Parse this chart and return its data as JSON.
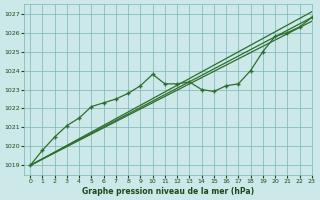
{
  "xlabel": "Graphe pression niveau de la mer (hPa)",
  "bg_color": "#cce8e8",
  "grid_color": "#7ab5b5",
  "line_color": "#2d6e2d",
  "marker_color": "#2d6e2d",
  "text_color": "#1a4a1a",
  "ylim": [
    1018.5,
    1027.5
  ],
  "xlim": [
    -0.5,
    23
  ],
  "yticks": [
    1019,
    1020,
    1021,
    1022,
    1023,
    1024,
    1025,
    1026,
    1027
  ],
  "xticks": [
    0,
    1,
    2,
    3,
    4,
    5,
    6,
    7,
    8,
    9,
    10,
    11,
    12,
    13,
    14,
    15,
    16,
    17,
    18,
    19,
    20,
    21,
    22,
    23
  ],
  "series": [
    {
      "x": [
        0,
        23
      ],
      "y": [
        1019.0,
        1026.6
      ],
      "has_markers": false,
      "lw": 0.9
    },
    {
      "x": [
        0,
        23
      ],
      "y": [
        1019.0,
        1027.1
      ],
      "has_markers": false,
      "lw": 0.9
    },
    {
      "x": [
        0,
        23
      ],
      "y": [
        1019.0,
        1026.8
      ],
      "has_markers": false,
      "lw": 0.9
    },
    {
      "x": [
        0,
        1,
        2,
        3,
        4,
        5,
        6,
        7,
        8,
        9,
        10,
        11,
        12,
        13,
        14,
        15,
        16,
        17,
        18,
        19,
        20,
        21,
        22,
        23
      ],
      "y": [
        1019.0,
        1019.8,
        1020.5,
        1021.1,
        1021.5,
        1022.1,
        1022.3,
        1022.5,
        1022.8,
        1023.2,
        1023.8,
        1023.3,
        1023.3,
        1023.4,
        1023.0,
        1022.9,
        1023.2,
        1023.3,
        1024.0,
        1025.0,
        1025.8,
        1026.0,
        1026.3,
        1026.8
      ],
      "has_markers": true,
      "lw": 0.9
    }
  ]
}
